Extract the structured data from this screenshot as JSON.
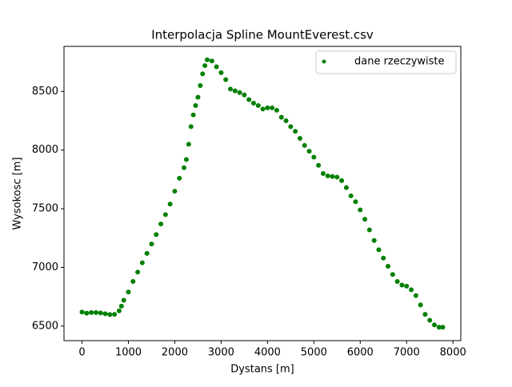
{
  "chart_data": {
    "type": "scatter",
    "title": "Interpolacja Spline MountEverest.csv",
    "xlabel": "Dystans [m]",
    "ylabel": "Wysokosc [m]",
    "xlim": [
      -389,
      8169
    ],
    "ylim": [
      6376,
      8884
    ],
    "xticks": [
      0,
      1000,
      2000,
      3000,
      4000,
      5000,
      6000,
      7000,
      8000
    ],
    "yticks": [
      6500,
      7000,
      7500,
      8000,
      8500
    ],
    "legend": "upper right",
    "series": [
      {
        "name": "dane rzeczywiste",
        "color": "#008000",
        "x": [
          0,
          100,
          200,
          300,
          400,
          500,
          600,
          700,
          800,
          850,
          900,
          1000,
          1100,
          1200,
          1300,
          1400,
          1500,
          1600,
          1700,
          1800,
          1900,
          2000,
          2100,
          2200,
          2250,
          2300,
          2350,
          2400,
          2450,
          2500,
          2550,
          2600,
          2650,
          2700,
          2800,
          2900,
          3000,
          3100,
          3200,
          3300,
          3400,
          3500,
          3600,
          3700,
          3800,
          3900,
          4000,
          4100,
          4200,
          4300,
          4400,
          4500,
          4600,
          4700,
          4800,
          4900,
          5000,
          5100,
          5200,
          5300,
          5400,
          5500,
          5600,
          5700,
          5800,
          5900,
          6000,
          6100,
          6200,
          6300,
          6400,
          6500,
          6600,
          6700,
          6800,
          6900,
          7000,
          7100,
          7200,
          7300,
          7400,
          7500,
          7600,
          7700,
          7780
        ],
        "values": [
          6620,
          6610,
          6615,
          6615,
          6612,
          6605,
          6598,
          6600,
          6630,
          6670,
          6720,
          6790,
          6880,
          6960,
          7040,
          7120,
          7200,
          7280,
          7370,
          7450,
          7540,
          7650,
          7760,
          7850,
          7920,
          8050,
          8200,
          8300,
          8380,
          8450,
          8550,
          8650,
          8720,
          8770,
          8760,
          8710,
          8660,
          8600,
          8520,
          8505,
          8490,
          8470,
          8430,
          8400,
          8380,
          8350,
          8360,
          8360,
          8340,
          8280,
          8250,
          8200,
          8160,
          8100,
          8040,
          7990,
          7940,
          7870,
          7800,
          7780,
          7775,
          7770,
          7740,
          7680,
          7610,
          7560,
          7490,
          7410,
          7320,
          7230,
          7150,
          7080,
          7010,
          6940,
          6880,
          6850,
          6840,
          6810,
          6760,
          6680,
          6600,
          6550,
          6510,
          6490,
          6490
        ]
      }
    ]
  }
}
